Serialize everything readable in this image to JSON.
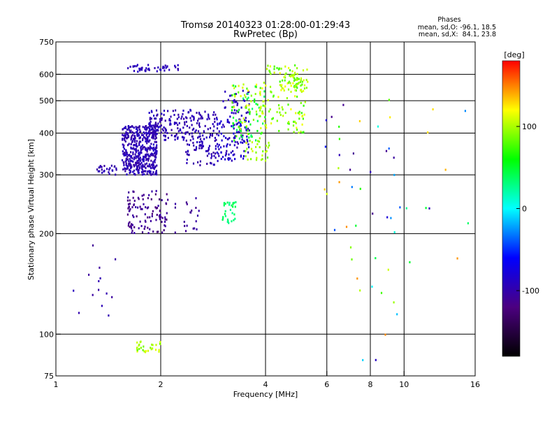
{
  "chart_data": {
    "type": "scatter",
    "title": "Tromsø 20140323 01:28:00-01:29:43",
    "subtitle": "RwPretec (Bp)",
    "xlabel": "Frequency [MHz]",
    "ylabel": "Stationary phase Virtual Height [km]",
    "x_scale": "log2",
    "y_scale": "log",
    "xlim": [
      1,
      16
    ],
    "ylim": [
      75,
      750
    ],
    "x_ticks": [
      1,
      2,
      4,
      6,
      8,
      10,
      16
    ],
    "x_tick_labels": [
      "1",
      "2",
      "4",
      "6",
      "8",
      "10",
      "16"
    ],
    "y_ticks": [
      75,
      100,
      200,
      300,
      400,
      500,
      600,
      750
    ],
    "y_tick_labels": [
      "75",
      "100",
      "200",
      "300",
      "400",
      "500",
      "600",
      "750"
    ],
    "grid": true,
    "info": {
      "heading": "Phases",
      "line1": "mean, sd,O: -96.1, 18.5",
      "line2": "mean, sd,X:  84.1, 23.8"
    },
    "colorbar": {
      "label": "[deg]",
      "range": [
        -180,
        180
      ],
      "ticks": [
        -100,
        0,
        100
      ],
      "tick_labels": [
        "-100",
        "0",
        "100"
      ],
      "colors": [
        "#000000",
        "#4c0080",
        "#0000ff",
        "#00ffff",
        "#00ff00",
        "#ffff00",
        "#ff0000"
      ]
    },
    "series": [
      {
        "clusters": [
          {
            "f": [
              1.55,
              1.95
            ],
            "h": [
              300,
              420
            ],
            "phase": [
              -105,
              -85
            ],
            "n": 450
          },
          {
            "f": [
              1.85,
              2.35
            ],
            "h": [
              380,
              470
            ],
            "phase": [
              -105,
              -85
            ],
            "n": 120
          },
          {
            "f": [
              2.35,
              2.9
            ],
            "h": [
              320,
              470
            ],
            "phase": [
              -105,
              -88
            ],
            "n": 140
          },
          {
            "f": [
              2.9,
              3.6
            ],
            "h": [
              330,
              440
            ],
            "phase": [
              -100,
              -75
            ],
            "n": 110
          },
          {
            "f": [
              3.0,
              3.6
            ],
            "h": [
              430,
              540
            ],
            "phase": [
              -100,
              -80
            ],
            "n": 40
          },
          {
            "f": [
              1.3,
              1.5
            ],
            "h": [
              300,
              320
            ],
            "phase": [
              -105,
              -90
            ],
            "n": 25
          },
          {
            "f": [
              1.6,
              2.25
            ],
            "h": [
              610,
              640
            ],
            "phase": [
              -100,
              -85
            ],
            "n": 45
          },
          {
            "f": [
              1.6,
              2.1
            ],
            "h": [
              200,
              270
            ],
            "phase": [
              -125,
              -100
            ],
            "n": 110
          },
          {
            "f": [
              2.2,
              2.6
            ],
            "h": [
              200,
              260
            ],
            "phase": [
              -115,
              -100
            ],
            "n": 20
          },
          {
            "f": [
              1.05,
              1.5
            ],
            "h": [
              110,
              200
            ],
            "phase": [
              -110,
              -90
            ],
            "n": 14
          }
        ]
      },
      {
        "clusters": [
          {
            "f": [
              3.2,
              4.0
            ],
            "h": [
              380,
              560
            ],
            "phase": [
              30,
              120
            ],
            "n": 110
          },
          {
            "f": [
              3.9,
              5.2
            ],
            "h": [
              400,
              640
            ],
            "phase": [
              70,
              120
            ],
            "n": 130
          },
          {
            "f": [
              3.5,
              4.1
            ],
            "h": [
              330,
              380
            ],
            "phase": [
              85,
              110
            ],
            "n": 30
          },
          {
            "f": [
              4.5,
              5.3
            ],
            "h": [
              530,
              620
            ],
            "phase": [
              80,
              115
            ],
            "n": 30
          },
          {
            "f": [
              3.0,
              3.3
            ],
            "h": [
              215,
              250
            ],
            "phase": [
              25,
              45
            ],
            "n": 30
          },
          {
            "f": [
              1.7,
              2.0
            ],
            "h": [
              88,
              95
            ],
            "phase": [
              80,
              120
            ],
            "n": 30
          },
          {
            "f": [
              5.8,
              10.0
            ],
            "h": [
              80,
              520
            ],
            "phase": [
              -120,
              160
            ],
            "n": 45
          },
          {
            "f": [
              10.0,
              15.5
            ],
            "h": [
              140,
              520
            ],
            "phase": [
              -100,
              150
            ],
            "n": 10
          }
        ]
      }
    ]
  }
}
